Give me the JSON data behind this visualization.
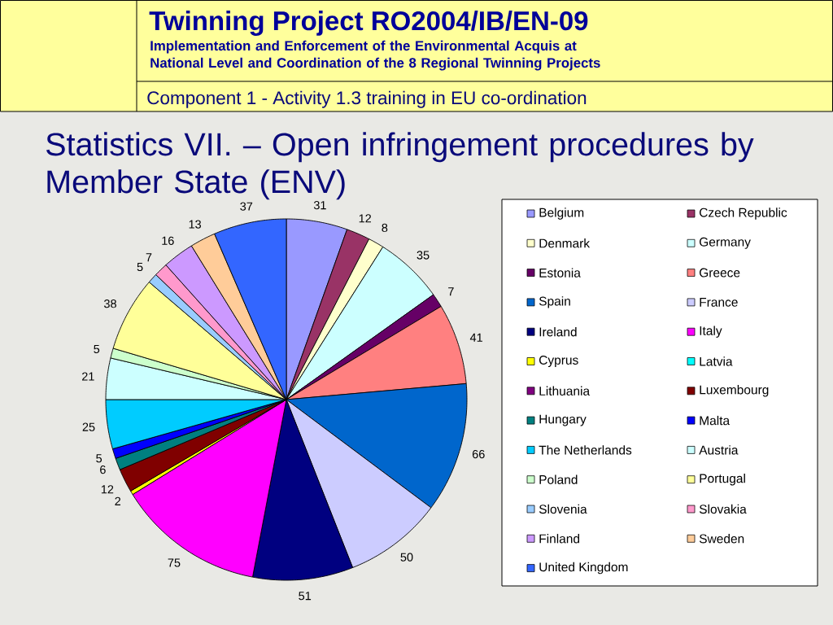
{
  "chart_data": {
    "type": "pie",
    "title": "Statistics VII. – Open infringement procedures by Member State (ENV)",
    "annotations": [
      "Twinning Project RO2004/IB/EN-09",
      "Implementation and Enforcement of the Environmental Acquis at National Level and Coordination of the 8 Regional Twinning Projects",
      "Component 1 - Activity 1.3 training in EU co-ordination"
    ],
    "categories": [
      "Belgium",
      "Czech Republic",
      "Denmark",
      "Germany",
      "Estonia",
      "Greece",
      "Spain",
      "France",
      "Ireland",
      "Italy",
      "Cyprus",
      "Latvia",
      "Lithuania",
      "Luxembourg",
      "Hungary",
      "Malta",
      "The Netherlands",
      "Austria",
      "Poland",
      "Portugal",
      "Slovenia",
      "Slovakia",
      "Finland",
      "Sweden",
      "United Kingdom"
    ],
    "values": [
      31,
      12,
      8,
      35,
      7,
      41,
      66,
      50,
      51,
      75,
      2,
      null,
      null,
      12,
      6,
      5,
      25,
      21,
      5,
      38,
      5,
      7,
      16,
      13,
      37
    ],
    "colors": [
      "#9999ff",
      "#993366",
      "#ffffcc",
      "#ccffff",
      "#660066",
      "#ff8080",
      "#0066cc",
      "#ccccff",
      "#000080",
      "#ff00ff",
      "#ffff00",
      "#00ffff",
      "#800080",
      "#800000",
      "#008080",
      "#0000ff",
      "#00ccff",
      "#ccffff",
      "#ccffcc",
      "#ffff99",
      "#99ccff",
      "#ff99cc",
      "#cc99ff",
      "#ffcc99",
      "#3366ff"
    ],
    "data_labels": true,
    "legend": "right"
  }
}
